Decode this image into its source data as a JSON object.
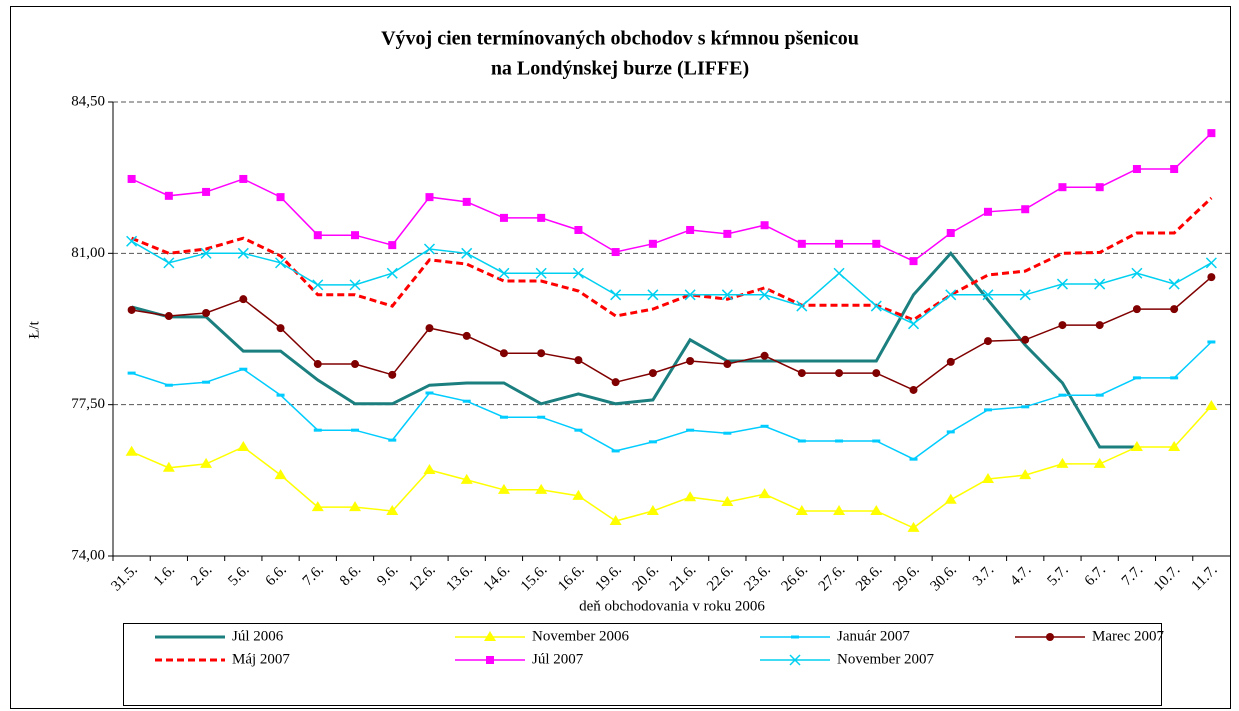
{
  "chart_data": {
    "type": "line",
    "title": [
      "Vývoj cien termínovaných obchodov s kŕmnou pšenicou",
      "na Londýnskej burze (LIFFE)"
    ],
    "xlabel": "deň obchodovania v roku 2006",
    "ylabel": "Ł/t",
    "categories": [
      "31.5.",
      "1.6.",
      "2.6.",
      "5.6.",
      "6.6.",
      "7.6.",
      "8.6.",
      "9.6.",
      "12.6.",
      "13.6.",
      "14.6.",
      "15.6.",
      "16.6.",
      "19.6.",
      "20.6.",
      "21.6.",
      "22.6.",
      "23.6.",
      "26.6.",
      "27.6.",
      "28.6.",
      "29.6.",
      "30.6.",
      "3.7.",
      "4.7.",
      "5.7.",
      "6.7.",
      "7.7.",
      "10.7.",
      "11.7."
    ],
    "ylim": [
      74,
      84.5
    ],
    "yticks": [
      {
        "value": 74,
        "label": "74,00"
      },
      {
        "value": 77.5,
        "label": "77,50"
      },
      {
        "value": 81,
        "label": "81,00"
      },
      {
        "value": 84.5,
        "label": "84,50"
      }
    ],
    "grid": true,
    "legend": "bottom",
    "series": [
      {
        "name": "Júl 2006",
        "color": "#1b7f7f",
        "marker": "none",
        "line_style": "solid",
        "width": 3,
        "values": [
          79.76,
          79.53,
          79.53,
          78.74,
          78.74,
          78.07,
          77.52,
          77.52,
          77.95,
          78.0,
          78.0,
          77.52,
          77.75,
          77.52,
          77.61,
          79.0,
          78.51,
          78.51,
          78.51,
          78.51,
          78.51,
          80.04,
          81.0,
          79.92,
          78.88,
          78.0,
          76.52,
          76.52,
          null,
          null
        ]
      },
      {
        "name": "November 2006",
        "color": "#ffff00",
        "marker": "triangle",
        "line_style": "solid",
        "width": 1.5,
        "values": [
          76.41,
          76.04,
          76.13,
          76.52,
          75.87,
          75.13,
          75.13,
          75.04,
          75.99,
          75.76,
          75.53,
          75.53,
          75.39,
          74.81,
          75.04,
          75.36,
          75.25,
          75.43,
          75.04,
          75.04,
          75.04,
          74.65,
          75.3,
          75.78,
          75.87,
          76.13,
          76.13,
          76.52,
          76.52,
          77.47
        ]
      },
      {
        "name": "Január 2007",
        "color": "#00ccff",
        "marker": "dash",
        "line_style": "solid",
        "width": 1.5,
        "values": [
          78.23,
          77.95,
          78.02,
          78.32,
          77.72,
          76.91,
          76.91,
          76.68,
          77.77,
          77.58,
          77.21,
          77.21,
          76.91,
          76.43,
          76.64,
          76.91,
          76.84,
          77.0,
          76.66,
          76.66,
          76.66,
          76.24,
          76.87,
          77.38,
          77.45,
          77.72,
          77.72,
          78.12,
          78.12,
          78.95
        ]
      },
      {
        "name": "Marec 2007",
        "color": "#800000",
        "marker": "circle",
        "line_style": "solid",
        "width": 1.5,
        "values": [
          79.69,
          79.55,
          79.62,
          79.94,
          79.27,
          78.44,
          78.44,
          78.19,
          79.27,
          79.09,
          78.69,
          78.69,
          78.53,
          78.02,
          78.23,
          78.51,
          78.44,
          78.63,
          78.23,
          78.23,
          78.23,
          77.84,
          78.49,
          78.97,
          79.0,
          79.34,
          79.34,
          79.71,
          79.71,
          80.45
        ]
      },
      {
        "name": "Máj 2007",
        "color": "#ff0000",
        "marker": "none",
        "line_style": "dashed",
        "width": 3,
        "values": [
          81.35,
          81.0,
          81.1,
          81.35,
          80.94,
          80.04,
          80.04,
          79.78,
          80.85,
          80.75,
          80.36,
          80.36,
          80.13,
          79.55,
          79.71,
          80.04,
          79.94,
          80.2,
          79.8,
          79.8,
          79.8,
          79.46,
          80.04,
          80.5,
          80.59,
          81.0,
          81.02,
          81.47,
          81.47,
          82.28
        ]
      },
      {
        "name": "Júl 2007",
        "color": "#ff00ff",
        "marker": "square",
        "line_style": "solid",
        "width": 1.5,
        "values": [
          82.72,
          82.33,
          82.42,
          82.72,
          82.3,
          81.42,
          81.42,
          81.19,
          82.3,
          82.19,
          81.82,
          81.82,
          81.54,
          81.03,
          81.22,
          81.54,
          81.45,
          81.65,
          81.22,
          81.22,
          81.22,
          80.82,
          81.47,
          81.96,
          82.02,
          82.53,
          82.53,
          82.95,
          82.95,
          83.78
        ]
      },
      {
        "name": "November 2007",
        "color": "#00d0f0",
        "marker": "x",
        "line_style": "solid",
        "width": 1.5,
        "values": [
          81.28,
          80.78,
          81.0,
          81.0,
          80.78,
          80.27,
          80.27,
          80.54,
          81.1,
          81.0,
          80.54,
          80.54,
          80.54,
          80.04,
          80.04,
          80.04,
          80.04,
          80.04,
          79.78,
          80.54,
          79.78,
          79.37,
          80.04,
          80.04,
          80.04,
          80.29,
          80.29,
          80.54,
          80.29,
          80.78
        ]
      }
    ]
  }
}
